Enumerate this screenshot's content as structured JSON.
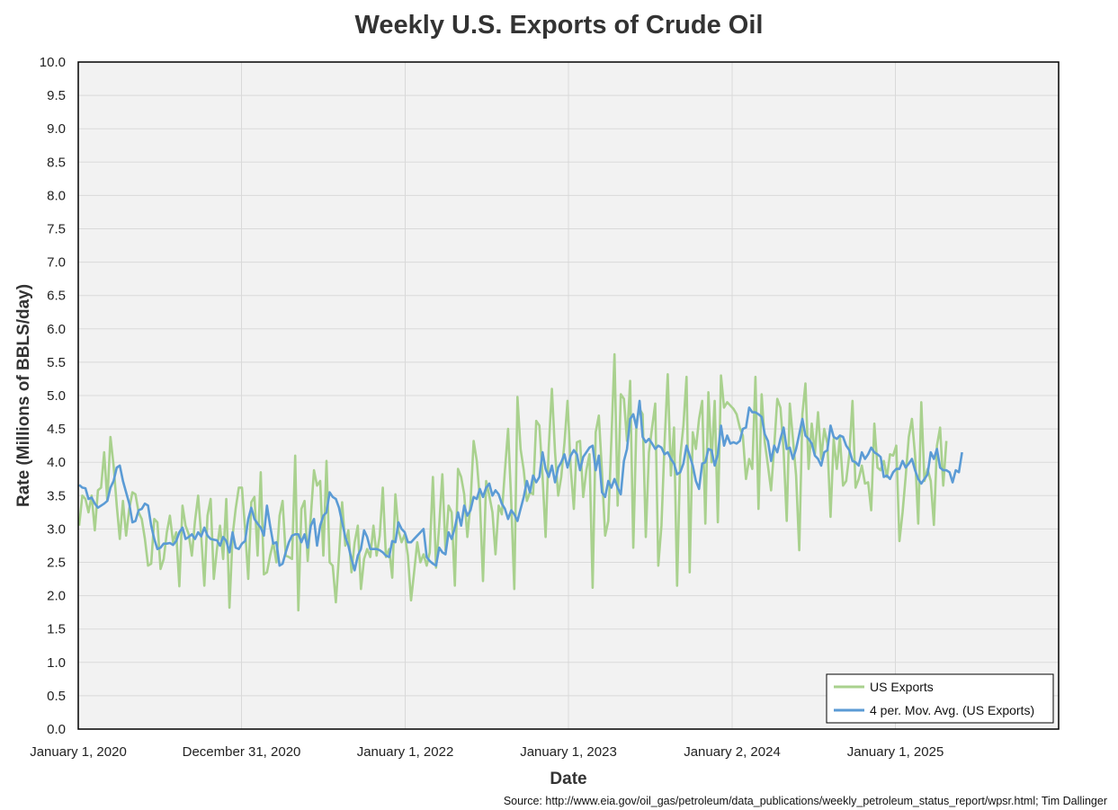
{
  "colors": {
    "exports": "#a9d18e",
    "moving_avg": "#5b9bd5",
    "plot_background": "#f2f2f2",
    "grid": "#d9d9d9",
    "frame": "#000000"
  },
  "chart_data": {
    "type": "line",
    "title": "Weekly U.S. Exports of Crude Oil",
    "xlabel": "Date",
    "ylabel": "Rate (Millions of BBLS/day)",
    "source": "Source: http://www.eia.gov/oil_gas/petroleum/data_publications/weekly_petroleum_status_report/wpsr.html; Tim Dallinger",
    "ylim": [
      0,
      10
    ],
    "y_ticks": [
      "0.0",
      "0.5",
      "1.0",
      "1.5",
      "2.0",
      "2.5",
      "3.0",
      "3.5",
      "4.0",
      "4.5",
      "5.0",
      "5.5",
      "6.0",
      "6.5",
      "7.0",
      "7.5",
      "8.0",
      "8.5",
      "9.0",
      "9.5",
      "10.0"
    ],
    "x_ticks": [
      "January 1, 2020",
      "December 31, 2020",
      "January 1, 2022",
      "January 1, 2023",
      "January 2, 2024",
      "January 1, 2025"
    ],
    "xlim": [
      "2020-01-01",
      "2026-01-01"
    ],
    "grid": true,
    "legend_position": "bottom-right",
    "x_start": "2020-01-03",
    "x_step_days": 7,
    "series": [
      {
        "name": "US Exports",
        "values": [
          3.05,
          3.5,
          3.45,
          3.25,
          3.5,
          2.98,
          3.58,
          3.62,
          4.15,
          3.42,
          4.38,
          3.95,
          3.35,
          2.85,
          3.42,
          2.9,
          3.3,
          3.55,
          3.52,
          3.25,
          3.15,
          2.85,
          2.45,
          2.48,
          3.15,
          3.1,
          2.4,
          2.55,
          2.95,
          3.2,
          2.8,
          2.95,
          2.14,
          3.35,
          3.05,
          2.92,
          2.6,
          3.12,
          3.5,
          2.9,
          2.15,
          3.2,
          3.45,
          2.25,
          2.7,
          3.05,
          2.55,
          3.45,
          1.82,
          2.9,
          3.3,
          3.62,
          3.62,
          3.0,
          2.25,
          3.4,
          3.48,
          2.6,
          3.85,
          2.32,
          2.35,
          2.6,
          2.8,
          2.5,
          3.2,
          3.42,
          2.6,
          2.58,
          2.55,
          4.1,
          1.78,
          3.3,
          3.42,
          2.52,
          3.2,
          3.88,
          3.65,
          3.72,
          2.6,
          4.02,
          2.5,
          2.45,
          1.9,
          2.6,
          3.4,
          2.75,
          2.98,
          2.35,
          2.8,
          3.05,
          2.1,
          2.55,
          2.7,
          2.58,
          3.05,
          2.6,
          2.9,
          3.62,
          2.58,
          2.7,
          2.27,
          3.52,
          2.98,
          2.8,
          2.92,
          2.6,
          1.93,
          2.35,
          2.8,
          2.5,
          2.62,
          2.45,
          2.65,
          3.78,
          2.42,
          3.05,
          3.82,
          2.68,
          3.35,
          3.25,
          2.15,
          3.9,
          3.78,
          3.52,
          2.88,
          3.38,
          4.32,
          4.02,
          3.45,
          2.22,
          3.72,
          3.5,
          3.25,
          2.62,
          3.35,
          3.22,
          3.88,
          4.5,
          3.4,
          2.1,
          4.98,
          4.2,
          3.88,
          3.42,
          3.55,
          3.52,
          4.62,
          4.55,
          3.8,
          2.88,
          4.22,
          5.1,
          4.15,
          3.5,
          3.78,
          4.28,
          4.92,
          3.92,
          3.3,
          4.3,
          4.32,
          3.48,
          3.88,
          4.12,
          2.12,
          4.45,
          4.7,
          3.85,
          2.9,
          3.12,
          4.32,
          5.62,
          3.35,
          5.02,
          4.95,
          4.32,
          5.22,
          2.72,
          4.6,
          4.8,
          4.72,
          2.88,
          4.15,
          4.52,
          4.88,
          2.45,
          3.05,
          4.3,
          5.32,
          3.8,
          4.52,
          2.15,
          4.08,
          4.55,
          5.28,
          2.35,
          4.45,
          4.2,
          4.65,
          4.92,
          3.08,
          5.05,
          4.0,
          4.92,
          3.1,
          5.3,
          4.82,
          4.9,
          4.85,
          4.8,
          4.72,
          4.52,
          4.4,
          3.75,
          4.05,
          3.9,
          5.28,
          3.3,
          5.02,
          4.3,
          3.95,
          3.58,
          4.22,
          4.95,
          4.82,
          4.18,
          3.12,
          4.88,
          4.35,
          3.8,
          2.68,
          4.72,
          5.18,
          3.9,
          4.58,
          4.12,
          4.75,
          4.05,
          4.5,
          4.28,
          3.18,
          4.35,
          3.9,
          4.38,
          3.65,
          3.72,
          4.12,
          4.92,
          3.62,
          3.75,
          3.95,
          3.68,
          3.7,
          3.28,
          4.58,
          3.92,
          3.88,
          4.02,
          3.78,
          4.12,
          4.1,
          4.25,
          2.82,
          3.25,
          3.78,
          4.38,
          4.65,
          4.1,
          3.08,
          4.9,
          3.72,
          3.9,
          3.72,
          3.06,
          4.25,
          4.52,
          3.65,
          4.32
        ]
      },
      {
        "name": "4 per. Mov. Avg. (US Exports)",
        "values": [
          3.66,
          3.62,
          3.61,
          3.45,
          3.47,
          3.38,
          3.32,
          3.35,
          3.38,
          3.42,
          3.62,
          3.72,
          3.92,
          3.95,
          3.72,
          3.55,
          3.38,
          3.1,
          3.12,
          3.28,
          3.3,
          3.38,
          3.35,
          3.05,
          2.85,
          2.7,
          2.72,
          2.78,
          2.78,
          2.79,
          2.76,
          2.82,
          2.95,
          3.02,
          2.85,
          2.88,
          2.92,
          2.85,
          2.95,
          2.89,
          3.02,
          2.9,
          2.85,
          2.84,
          2.83,
          2.75,
          2.88,
          2.82,
          2.65,
          2.95,
          2.72,
          2.7,
          2.78,
          2.82,
          3.15,
          3.32,
          3.15,
          3.08,
          3.02,
          2.9,
          3.35,
          3.05,
          2.78,
          2.8,
          2.45,
          2.48,
          2.65,
          2.8,
          2.9,
          2.92,
          2.92,
          2.8,
          2.92,
          2.72,
          3.05,
          3.15,
          2.75,
          3.05,
          3.2,
          3.25,
          3.55,
          3.48,
          3.45,
          3.32,
          3.1,
          2.88,
          2.75,
          2.55,
          2.38,
          2.6,
          2.7,
          2.98,
          2.88,
          2.7,
          2.7,
          2.7,
          2.68,
          2.65,
          2.6,
          2.58,
          2.82,
          2.8,
          3.1,
          3.0,
          2.95,
          2.8,
          2.8,
          2.85,
          2.9,
          2.95,
          3.0,
          2.58,
          2.52,
          2.48,
          2.45,
          2.72,
          2.65,
          2.62,
          2.95,
          2.85,
          3.02,
          3.25,
          3.05,
          3.35,
          3.2,
          3.28,
          3.48,
          3.45,
          3.6,
          3.48,
          3.62,
          3.68,
          3.5,
          3.58,
          3.52,
          3.38,
          3.3,
          3.15,
          3.28,
          3.22,
          3.12,
          3.3,
          3.48,
          3.72,
          3.55,
          3.8,
          3.7,
          3.78,
          4.15,
          3.9,
          3.78,
          3.95,
          3.7,
          3.92,
          4.0,
          4.12,
          3.92,
          4.1,
          4.18,
          4.12,
          3.88,
          4.08,
          4.15,
          4.22,
          4.25,
          3.88,
          4.1,
          3.55,
          3.48,
          3.72,
          3.62,
          3.75,
          3.62,
          3.52,
          4.02,
          4.2,
          4.65,
          4.72,
          4.52,
          4.92,
          4.38,
          4.3,
          4.35,
          4.28,
          4.2,
          4.25,
          4.22,
          4.12,
          4.15,
          4.05,
          3.98,
          3.82,
          3.85,
          3.98,
          4.25,
          4.1,
          3.95,
          3.72,
          3.6,
          3.98,
          4.0,
          4.2,
          4.18,
          3.95,
          4.12,
          4.55,
          4.25,
          4.4,
          4.28,
          4.3,
          4.28,
          4.32,
          4.5,
          4.52,
          4.82,
          4.75,
          4.75,
          4.72,
          4.68,
          4.42,
          4.32,
          4.02,
          4.25,
          4.15,
          4.35,
          4.52,
          4.2,
          4.22,
          4.05,
          4.2,
          4.42,
          4.65,
          4.4,
          4.35,
          4.28,
          4.1,
          4.05,
          3.95,
          4.15,
          4.18,
          4.55,
          4.38,
          4.35,
          4.4,
          4.38,
          4.25,
          4.18,
          4.02,
          4.0,
          3.95,
          4.15,
          4.05,
          4.12,
          4.22,
          4.15,
          4.12,
          4.08,
          3.78,
          3.8,
          3.75,
          3.85,
          3.9,
          3.9,
          4.02,
          3.92,
          3.98,
          4.05,
          3.88,
          3.75,
          3.68,
          3.75,
          3.82,
          4.15,
          4.05,
          4.2,
          3.92,
          3.88,
          3.88,
          3.85,
          3.7,
          3.88,
          3.85,
          4.15
        ]
      }
    ]
  }
}
